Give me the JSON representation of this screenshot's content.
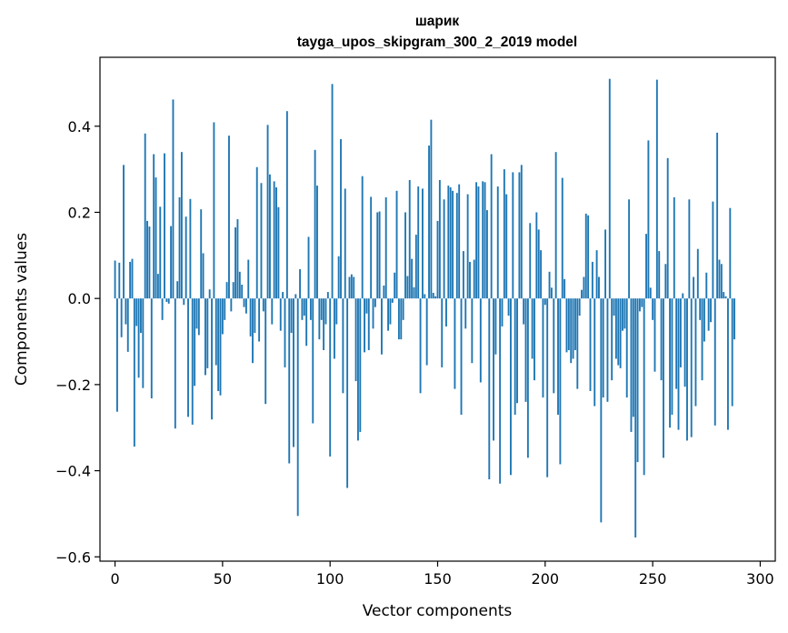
{
  "chart_data": {
    "type": "bar",
    "title": "шарик",
    "subtitle": "tayga_upos_skipgram_300_2_2019 model",
    "xlabel": "Vector components",
    "ylabel": "Components values",
    "xlim": [
      -7,
      307
    ],
    "ylim": [
      -0.61,
      0.56
    ],
    "xticks": [
      0,
      50,
      100,
      150,
      200,
      250,
      300
    ],
    "xtick_labels": [
      "0",
      "50",
      "100",
      "150",
      "200",
      "250",
      "300"
    ],
    "yticks": [
      -0.6,
      -0.4,
      -0.2,
      0.0,
      0.2,
      0.4
    ],
    "ytick_labels": [
      "−0.6",
      "−0.4",
      "−0.2",
      "0.0",
      "0.2",
      "0.4"
    ],
    "bar_color": "#1f77b4",
    "values": [
      0.088,
      -0.263,
      0.083,
      -0.09,
      0.31,
      -0.06,
      -0.124,
      0.085,
      0.092,
      -0.344,
      -0.064,
      -0.184,
      -0.08,
      -0.208,
      0.383,
      0.18,
      0.167,
      -0.232,
      0.335,
      0.281,
      0.057,
      0.213,
      -0.05,
      0.337,
      -0.008,
      -0.012,
      0.168,
      0.462,
      -0.302,
      0.04,
      0.235,
      0.34,
      -0.015,
      0.19,
      -0.275,
      0.231,
      -0.293,
      -0.203,
      -0.07,
      -0.085,
      0.207,
      0.105,
      -0.178,
      -0.162,
      0.021,
      -0.281,
      0.409,
      -0.155,
      -0.215,
      -0.225,
      -0.083,
      -0.05,
      0.038,
      0.378,
      -0.03,
      0.038,
      0.165,
      0.184,
      0.062,
      0.032,
      -0.02,
      -0.035,
      0.09,
      -0.088,
      -0.15,
      -0.08,
      0.305,
      -0.1,
      0.268,
      -0.03,
      -0.245,
      0.403,
      0.288,
      -0.06,
      0.272,
      0.258,
      0.212,
      -0.075,
      0.015,
      -0.16,
      0.435,
      -0.383,
      -0.08,
      -0.345,
      0.01,
      -0.505,
      0.068,
      -0.05,
      -0.04,
      -0.11,
      0.143,
      -0.05,
      -0.29,
      0.345,
      0.262,
      -0.095,
      -0.05,
      -0.12,
      -0.06,
      0.015,
      -0.367,
      0.498,
      -0.14,
      -0.06,
      0.098,
      0.37,
      -0.22,
      0.255,
      -0.44,
      0.05,
      0.056,
      0.05,
      -0.192,
      -0.33,
      -0.31,
      0.284,
      -0.125,
      -0.035,
      -0.12,
      0.236,
      -0.07,
      -0.02,
      0.2,
      0.202,
      -0.13,
      0.03,
      0.235,
      -0.075,
      -0.06,
      -0.01,
      0.06,
      0.25,
      -0.095,
      -0.095,
      -0.05,
      0.2,
      0.052,
      0.275,
      0.092,
      0.026,
      0.148,
      0.26,
      -0.22,
      0.255,
      0.01,
      -0.155,
      0.355,
      0.415,
      0.013,
      0.005,
      0.18,
      0.275,
      -0.16,
      0.23,
      -0.065,
      0.262,
      0.258,
      0.25,
      -0.21,
      0.245,
      0.265,
      -0.27,
      0.11,
      -0.07,
      0.242,
      0.085,
      -0.15,
      0.09,
      0.27,
      0.26,
      -0.195,
      0.272,
      0.27,
      0.205,
      -0.42,
      0.335,
      -0.33,
      -0.13,
      0.26,
      -0.43,
      -0.065,
      0.3,
      0.242,
      -0.04,
      -0.41,
      0.293,
      -0.27,
      -0.243,
      0.293,
      0.31,
      -0.06,
      -0.24,
      -0.37,
      0.175,
      -0.14,
      -0.19,
      0.2,
      0.16,
      0.112,
      -0.23,
      -0.015,
      -0.415,
      0.062,
      0.025,
      -0.22,
      0.34,
      -0.27,
      -0.385,
      0.28,
      0.045,
      -0.125,
      -0.12,
      -0.15,
      -0.14,
      -0.12,
      -0.21,
      -0.04,
      0.02,
      0.05,
      0.197,
      0.193,
      -0.215,
      0.085,
      -0.25,
      0.112,
      0.05,
      -0.52,
      -0.23,
      0.16,
      -0.24,
      0.51,
      -0.19,
      -0.04,
      -0.14,
      -0.155,
      -0.162,
      -0.075,
      -0.07,
      -0.23,
      0.23,
      -0.31,
      -0.275,
      -0.555,
      -0.38,
      -0.03,
      -0.02,
      -0.41,
      0.15,
      0.367,
      0.025,
      -0.05,
      -0.17,
      0.508,
      0.11,
      -0.19,
      -0.37,
      0.08,
      0.326,
      -0.3,
      -0.27,
      0.235,
      -0.21,
      -0.305,
      -0.16,
      0.012,
      -0.205,
      -0.33,
      0.23,
      -0.322,
      0.05,
      -0.25,
      0.115,
      -0.05,
      -0.19,
      -0.1,
      0.06,
      -0.075,
      -0.055,
      0.225,
      -0.295,
      0.385,
      0.09,
      0.08,
      0.015,
      0.005,
      -0.305,
      0.21,
      -0.25,
      -0.095
    ]
  }
}
